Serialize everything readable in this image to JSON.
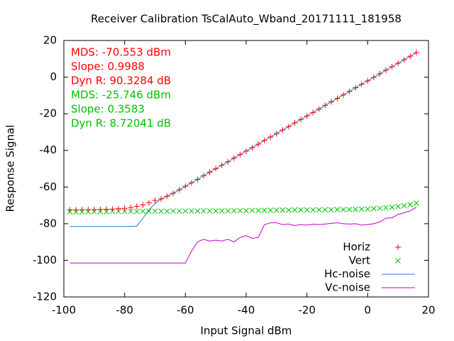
{
  "chart_data": {
    "type": "scatter-line",
    "title": "Receiver Calibration TsCalAuto_Wband_20171111_181958",
    "x_label": "Input Signal dBm",
    "y_label": "Response Signal",
    "xlim": [
      -100,
      20
    ],
    "xticks": [
      -100,
      -80,
      -60,
      -40,
      -20,
      0,
      20
    ],
    "ylim": [
      -120,
      20
    ],
    "yticks": [
      -120,
      -100,
      -80,
      -60,
      -40,
      -20,
      0,
      20
    ],
    "grid": false,
    "legend": "bottom right",
    "x": [
      -98,
      -96,
      -94,
      -92,
      -90,
      -88,
      -86,
      -84,
      -82,
      -80,
      -78,
      -76,
      -74,
      -72,
      -70,
      -68,
      -66,
      -64,
      -62,
      -60,
      -58,
      -56,
      -54,
      -52,
      -50,
      -48,
      -46,
      -44,
      -42,
      -40,
      -38,
      -36,
      -34,
      -32,
      -30,
      -28,
      -26,
      -24,
      -22,
      -20,
      -18,
      -16,
      -14,
      -12,
      -10,
      -8,
      -6,
      -4,
      -2,
      0,
      2,
      4,
      6,
      8,
      10,
      12,
      14,
      16
    ],
    "series": [
      {
        "name": "Horiz",
        "style": "plus",
        "color": "#ff0000",
        "values": [
          -72.5,
          -72.5,
          -72.4,
          -72.4,
          -72.3,
          -72.2,
          -72.1,
          -72.0,
          -71.8,
          -71.6,
          -71.2,
          -70.6,
          -69.8,
          -68.6,
          -67.3,
          -66.5,
          -65.0,
          -63.4,
          -61.5,
          -59.6,
          -57.7,
          -55.8,
          -53.8,
          -51.9,
          -50.0,
          -48.1,
          -46.2,
          -44.2,
          -42.3,
          -40.4,
          -38.5,
          -36.6,
          -34.6,
          -32.7,
          -30.8,
          -28.9,
          -27.0,
          -25.0,
          -23.1,
          -21.2,
          -19.3,
          -17.4,
          -15.4,
          -13.5,
          -11.6,
          -9.7,
          -7.8,
          -5.8,
          -3.9,
          -2.0,
          -0.1,
          1.8,
          3.8,
          5.7,
          7.6,
          9.5,
          11.4,
          13.4
        ]
      },
      {
        "name": "Vert",
        "style": "cross",
        "color": "#00c000",
        "values": [
          -73.5,
          -73.5,
          -73.5,
          -73.4,
          -73.4,
          -73.4,
          -73.4,
          -73.3,
          -73.3,
          -73.3,
          -73.3,
          -73.3,
          -73.2,
          -73.2,
          -73.2,
          -73.2,
          -73.2,
          -73.1,
          -73.1,
          -73.1,
          -73.1,
          -73.1,
          -73.0,
          -73.0,
          -73.0,
          -73.0,
          -73.0,
          -72.9,
          -72.9,
          -72.9,
          -72.8,
          -72.8,
          -72.7,
          -72.7,
          -72.6,
          -72.6,
          -72.6,
          -72.5,
          -72.5,
          -72.5,
          -72.5,
          -72.4,
          -72.4,
          -72.4,
          -72.3,
          -72.3,
          -72.3,
          -72.2,
          -72.1,
          -72.0,
          -71.8,
          -71.6,
          -71.3,
          -71.0,
          -70.6,
          -70.2,
          -69.6,
          -68.8
        ]
      },
      {
        "name": "Hc-noise",
        "style": "line",
        "color": "#1f78d0",
        "values": [
          -81.5,
          -81.5,
          -81.5,
          -81.5,
          -81.5,
          -81.5,
          -81.5,
          -81.5,
          -81.5,
          -81.5,
          -81.5,
          -81.3,
          -77.0,
          -72.5,
          -69.0,
          -66.5,
          -65.0,
          -63.4,
          -61.5,
          -59.6,
          -57.7,
          -55.8,
          -53.8,
          -51.9,
          -50.0,
          -48.1,
          -46.2,
          -44.2,
          -42.3,
          -40.4,
          -38.5,
          -36.6,
          -34.6,
          -32.7,
          -30.8,
          -28.9,
          -27.0,
          -25.0,
          -23.1,
          -21.2,
          -19.3,
          -17.4,
          -15.4,
          -13.5,
          -11.6,
          -9.7,
          -7.8,
          -5.8,
          -3.9,
          -2.0,
          -0.1,
          1.8,
          3.8,
          5.7,
          7.6,
          9.5,
          11.4,
          13.4
        ]
      },
      {
        "name": "Vc-noise",
        "style": "line",
        "color": "#c000c0",
        "values": [
          -101.5,
          -101.5,
          -101.5,
          -101.5,
          -101.5,
          -101.5,
          -101.5,
          -101.5,
          -101.5,
          -101.5,
          -101.5,
          -101.5,
          -101.5,
          -101.5,
          -101.5,
          -101.5,
          -101.5,
          -101.5,
          -101.5,
          -101.5,
          -95,
          -90,
          -88.5,
          -89.5,
          -89,
          -89.5,
          -88.5,
          -90,
          -87.5,
          -86.5,
          -88,
          -87.5,
          -80.5,
          -79.5,
          -79.5,
          -80.5,
          -80.2,
          -81,
          -80.5,
          -80.8,
          -80.3,
          -80.5,
          -80.2,
          -79.8,
          -79.5,
          -80,
          -80.2,
          -80,
          -80.8,
          -80.5,
          -80,
          -79,
          -77,
          -76.8,
          -75,
          -74,
          -73,
          -71
        ]
      }
    ],
    "annotations": [
      {
        "text": "MDS: -70.553 dBm",
        "color": "#ff0000"
      },
      {
        "text": "Slope: 0.9988",
        "color": "#ff0000"
      },
      {
        "text": "Dyn R: 90.3284 dB",
        "color": "#ff0000"
      },
      {
        "text": "MDS: -25.746 dBm",
        "color": "#00c000"
      },
      {
        "text": "Slope: 0.3583",
        "color": "#00c000"
      },
      {
        "text": "Dyn R: 8.72041 dB",
        "color": "#00c000"
      }
    ]
  }
}
